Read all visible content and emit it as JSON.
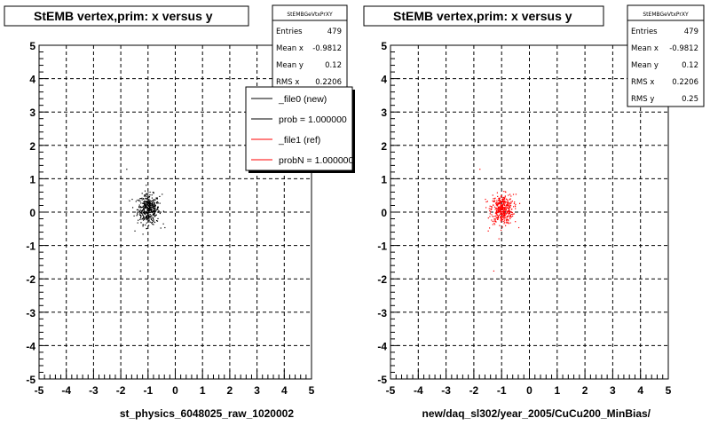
{
  "chart_data": [
    {
      "type": "scatter",
      "title": "StEMB  vertex,prim: x versus y",
      "xlabel": "st_physics_6048025_raw_1020002",
      "xlim": [
        -5,
        5
      ],
      "ylim": [
        -5,
        5
      ],
      "xticks": [
        "-5",
        "-4",
        "-3",
        "-2",
        "-1",
        "0",
        "1",
        "2",
        "3",
        "4",
        "5"
      ],
      "yticks": [
        "5",
        "4",
        "3",
        "2",
        "1",
        "0",
        "-1",
        "-2",
        "-3",
        "-4",
        "-5"
      ],
      "grid": true,
      "point_color": "#000000",
      "cluster": {
        "x": -1.0,
        "y": 0.1
      },
      "stats": {
        "name": "StEMBGeVtxPrXY",
        "rows": [
          {
            "label": "Entries",
            "value": "479"
          },
          {
            "label": "Mean x",
            "value": "-0.9812"
          },
          {
            "label": "Mean y",
            "value": "0.12"
          },
          {
            "label": "RMS x",
            "value": "0.2206"
          }
        ]
      },
      "legend": [
        {
          "label": "_file0 (new)",
          "color": "#000000"
        },
        {
          "label": "prob = 1.000000",
          "color": "#000000"
        },
        {
          "label": "_file1 (ref)",
          "color": "#ff0000"
        },
        {
          "label": "probN = 1.000000",
          "color": "#ff0000"
        }
      ]
    },
    {
      "type": "scatter",
      "title": "StEMB  vertex,prim: x versus y",
      "xlabel": "new/daq_sl302/year_2005/CuCu200_MinBias/",
      "xlim": [
        -5,
        5
      ],
      "ylim": [
        -5,
        5
      ],
      "xticks": [
        "-5",
        "-4",
        "-3",
        "-2",
        "-1",
        "0",
        "1",
        "2",
        "3",
        "4",
        "5"
      ],
      "yticks": [
        "5",
        "4",
        "3",
        "2",
        "1",
        "0",
        "-1",
        "-2",
        "-3",
        "-4",
        "-5"
      ],
      "grid": true,
      "point_color": "#ff0000",
      "cluster": {
        "x": -1.0,
        "y": 0.1
      },
      "stats": {
        "name": "StEMBGeVtxPrXY",
        "rows": [
          {
            "label": "Entries",
            "value": "479"
          },
          {
            "label": "Mean x",
            "value": "-0.9812"
          },
          {
            "label": "Mean y",
            "value": "0.12"
          },
          {
            "label": "RMS x",
            "value": "0.2206"
          },
          {
            "label": "RMS y",
            "value": "0.25"
          }
        ]
      }
    }
  ]
}
